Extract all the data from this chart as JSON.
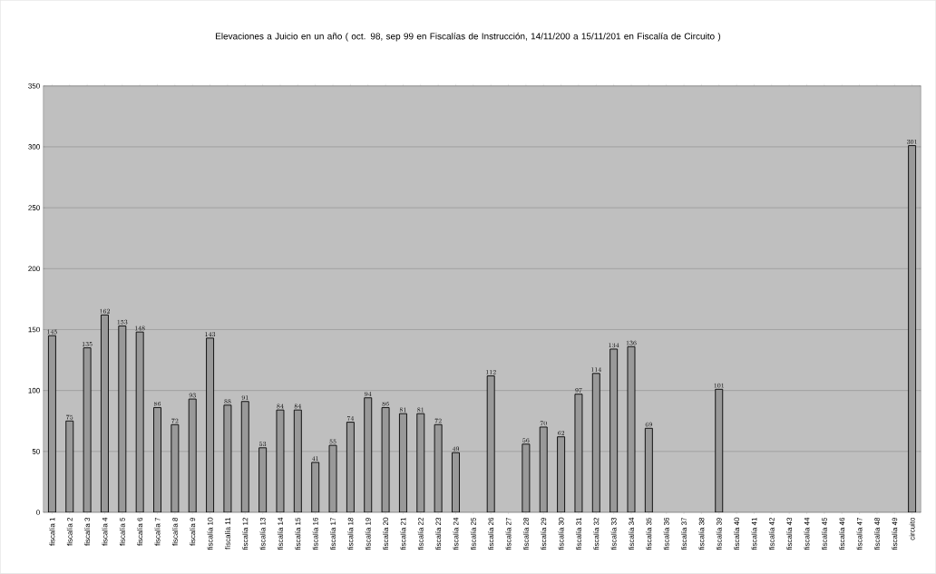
{
  "chart_data": {
    "type": "bar",
    "title": "Elevaciones a Juicio en un año ( oct. 98, sep 99 en Fiscalías de Instrucción, 14/11/200 a 15/11/201 en Fiscalía de Circuito )",
    "categories": [
      "fiscalía 1",
      "fiscalía 2",
      "fiscalía 3",
      "fiscalía 4",
      "fiscalía 5",
      "fiscalía 6",
      "fiscalía 7",
      "fiscalía 8",
      "fiscalía 9",
      "fiscalía 10",
      "fiscalía 11",
      "fiscalía 12",
      "fiscalía 13",
      "fiscalía 14",
      "fiscalía 15",
      "fiscalía 16",
      "fiscalía 17",
      "fiscalía 18",
      "fiscalía 19",
      "fiscalía 20",
      "fiscalía 21",
      "fiscalía 22",
      "fiscalía 23",
      "fiscalía 24",
      "fiscalía 25",
      "fiscalía 26",
      "fiscalía 27",
      "fiscalía 28",
      "fiscalía 29",
      "fiscalía 30",
      "fiscalía 31",
      "fiscalía 32",
      "fiscalía 33",
      "fiscalía 34",
      "fiscalía 35",
      "fiscalía 36",
      "fiscalía 37",
      "fiscalía 38",
      "fiscalía 39",
      "fiscalía 40",
      "fiscalía 41",
      "fiscalía 42",
      "fiscalía 43",
      "fiscalía 44",
      "fiscalía 45",
      "fiscalía 46",
      "fiscalía 47",
      "fiscalía 48",
      "fiscalía 49",
      "circuito"
    ],
    "values": [
      145,
      75,
      135,
      162,
      153,
      148,
      86,
      72,
      93,
      143,
      88,
      91,
      53,
      84,
      84,
      41,
      55,
      74,
      94,
      86,
      81,
      81,
      72,
      49,
      null,
      112,
      null,
      56,
      70,
      62,
      97,
      114,
      134,
      136,
      69,
      null,
      null,
      null,
      101,
      null,
      null,
      null,
      null,
      null,
      null,
      null,
      null,
      null,
      null,
      301
    ],
    "color": "#999999",
    "ylim": [
      0,
      350
    ],
    "yticks": [
      0,
      50,
      100,
      150,
      200,
      250,
      300,
      350
    ],
    "grid": "y",
    "data_labels": true
  }
}
